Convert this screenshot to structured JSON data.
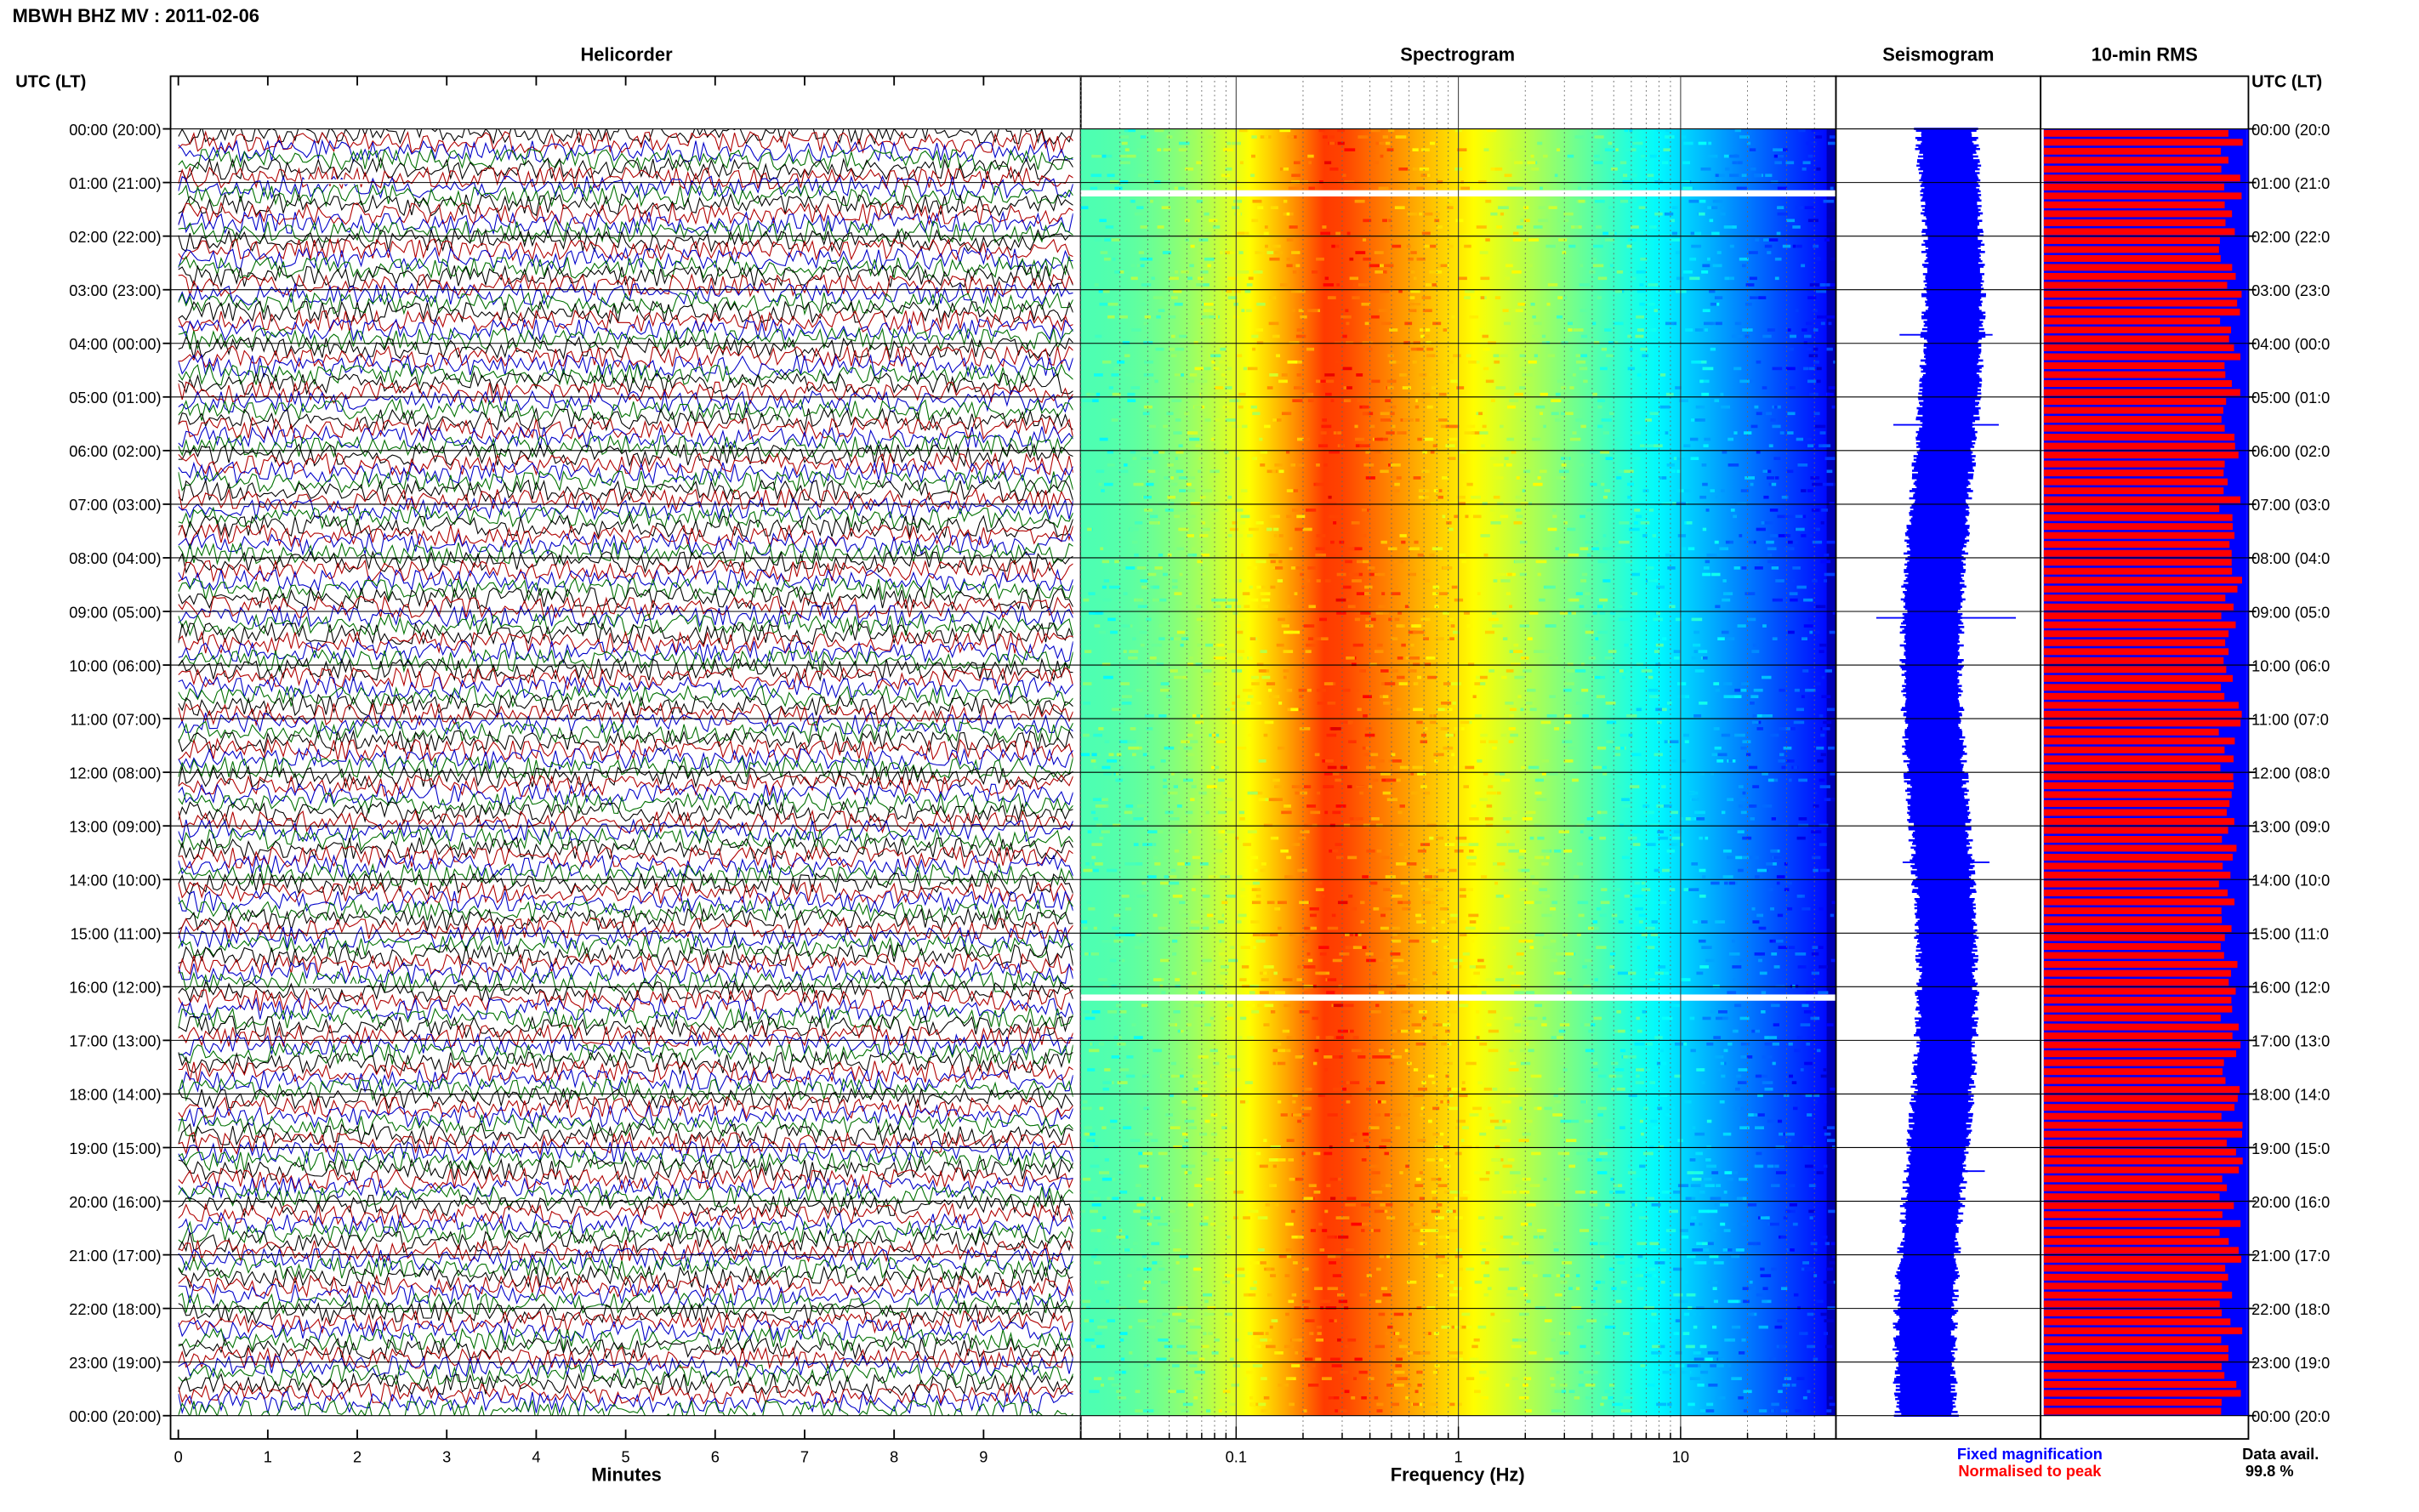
{
  "page_title": "MBWH BHZ MV : 2011-02-06",
  "left_axis_header": "UTC (LT)",
  "right_axis_header": "UTC (LT)",
  "time_labels": [
    "00:00 (20:00)",
    "01:00 (21:00)",
    "02:00 (22:00)",
    "03:00 (23:00)",
    "04:00 (00:00)",
    "05:00 (01:00)",
    "06:00 (02:00)",
    "07:00 (03:00)",
    "08:00 (04:00)",
    "09:00 (05:00)",
    "10:00 (06:00)",
    "11:00 (07:00)",
    "12:00 (08:00)",
    "13:00 (09:00)",
    "14:00 (10:00)",
    "15:00 (11:00)",
    "16:00 (12:00)",
    "17:00 (13:00)",
    "18:00 (14:00)",
    "19:00 (15:00)",
    "20:00 (16:00)",
    "21:00 (17:00)",
    "22:00 (18:00)",
    "23:00 (19:00)",
    "00:00 (20:00)"
  ],
  "right_time_labels": [
    "00:00 (20:0",
    "01:00 (21:0",
    "02:00 (22:0",
    "03:00 (23:0",
    "04:00 (00:0",
    "05:00 (01:0",
    "06:00 (02:0",
    "07:00 (03:0",
    "08:00 (04:0",
    "09:00 (05:0",
    "10:00 (06:0",
    "11:00 (07:0",
    "12:00 (08:0",
    "13:00 (09:0",
    "14:00 (10:0",
    "15:00 (11:0",
    "16:00 (12:0",
    "17:00 (13:0",
    "18:00 (14:0",
    "19:00 (15:0",
    "20:00 (16:0",
    "21:00 (17:0",
    "22:00 (18:0",
    "23:00 (19:0",
    "00:00 (20:0"
  ],
  "colors": {
    "helicorder_traces": [
      "#000000",
      "#b00000",
      "#0000c8",
      "#007000"
    ],
    "seismogram": "#0000ff",
    "rms_fixed": "#0000ff",
    "rms_normalised": "#ff0000",
    "spectrogram_colormap": "jet"
  },
  "legend": {
    "fixed": "Fixed magnification",
    "normalised": "Normalised to peak",
    "data_avail_label": "Data avail.",
    "data_avail_value": "99.8 %"
  },
  "chart_data": [
    {
      "type": "line",
      "panel": "helicorder",
      "title": "Helicorder",
      "xlabel": "Minutes",
      "xlim": [
        0,
        10
      ],
      "x_ticks": [
        "0",
        "1",
        "2",
        "3",
        "4",
        "5",
        "6",
        "7",
        "8",
        "9"
      ],
      "traces_per_hour": 6,
      "trace_minutes": 10,
      "y_labels": "time_labels",
      "gaps_utc": [
        "01:00",
        "16:00"
      ]
    },
    {
      "type": "heatmap",
      "panel": "spectrogram",
      "title": "Spectrogram",
      "xlabel": "Frequency (Hz)",
      "x_scale": "log",
      "xlim": [
        0.02,
        50
      ],
      "x_ticks": [
        "0.1",
        "1",
        "10"
      ],
      "peak_band_hz": [
        0.18,
        0.35
      ],
      "gaps_utc": [
        "01:00",
        "16:00"
      ]
    },
    {
      "type": "line",
      "panel": "seismogram",
      "title": "Seismogram"
    },
    {
      "type": "bar",
      "panel": "rms",
      "title": "10-min RMS",
      "orientation": "horizontal",
      "bins": 144,
      "series": [
        {
          "name": "Fixed magnification",
          "relative_level": 1.0
        },
        {
          "name": "Normalised to peak",
          "relative_level": 0.95
        }
      ]
    }
  ]
}
